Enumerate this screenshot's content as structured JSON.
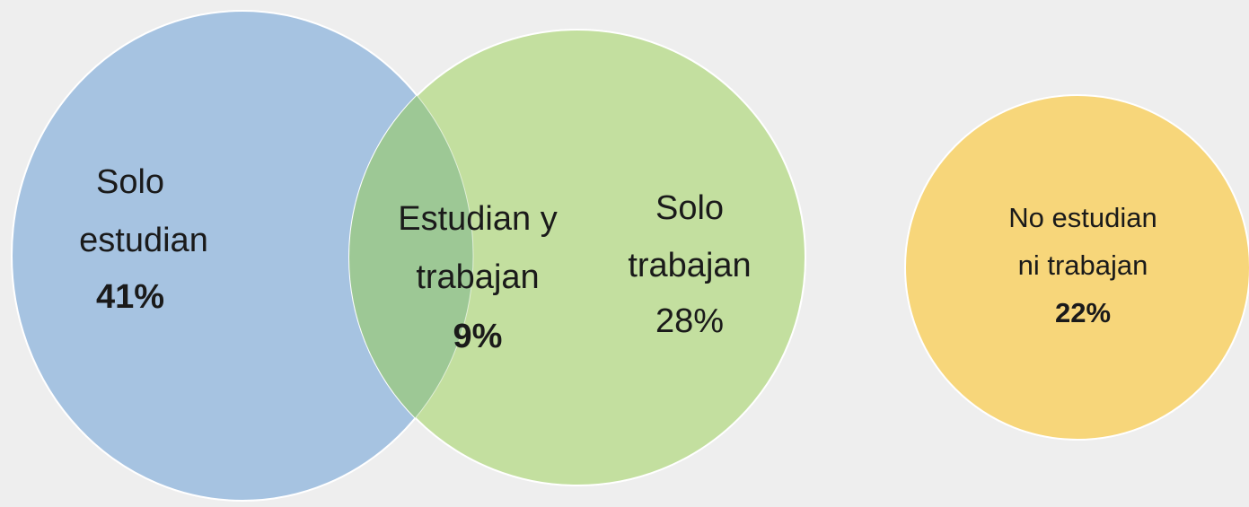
{
  "nodes": [
    {
      "label": [
        "Solo",
        "estudian"
      ],
      "value": "41%"
    },
    {
      "label": [
        "Estudian y",
        "trabajan"
      ],
      "value": "9%"
    },
    {
      "label": [
        "Solo",
        "trabajan"
      ],
      "value": "28%"
    },
    {
      "label": [
        "No estudian",
        "ni trabajan"
      ],
      "value": "22%"
    }
  ]
}
